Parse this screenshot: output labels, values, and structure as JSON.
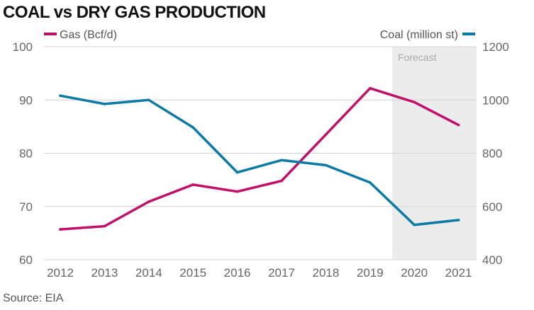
{
  "title": "COAL vs DRY GAS PRODUCTION",
  "source": "Source: EIA",
  "forecast_label": "Forecast",
  "colors": {
    "gas": "#c0106a",
    "coal": "#0b7aa6",
    "forecast_band": "#ececec",
    "grid": "#d4d4d4"
  },
  "chart_data": {
    "type": "line",
    "title": "COAL vs DRY GAS PRODUCTION",
    "categories": [
      "2012",
      "2013",
      "2014",
      "2015",
      "2016",
      "2017",
      "2018",
      "2019",
      "2020",
      "2021"
    ],
    "forecast_start": "2019.5",
    "series": [
      {
        "name": "Gas (Bcf/d)",
        "axis": "left",
        "color": "#c0106a",
        "values": [
          65.7,
          66.3,
          70.9,
          74.1,
          72.8,
          74.8,
          83.5,
          92.2,
          89.6,
          85.3
        ]
      },
      {
        "name": "Coal (million st)",
        "axis": "right",
        "color": "#0b7aa6",
        "values": [
          1016,
          985,
          1000,
          897,
          728,
          774,
          755,
          690,
          531,
          549
        ]
      }
    ],
    "y_left": {
      "min": 60,
      "max": 100,
      "ticks": [
        "60",
        "70",
        "80",
        "90",
        "100"
      ]
    },
    "y_right": {
      "min": 400,
      "max": 1200,
      "ticks": [
        "400",
        "600",
        "800",
        "1000",
        "1200"
      ]
    },
    "grid": true,
    "legend": "top"
  }
}
